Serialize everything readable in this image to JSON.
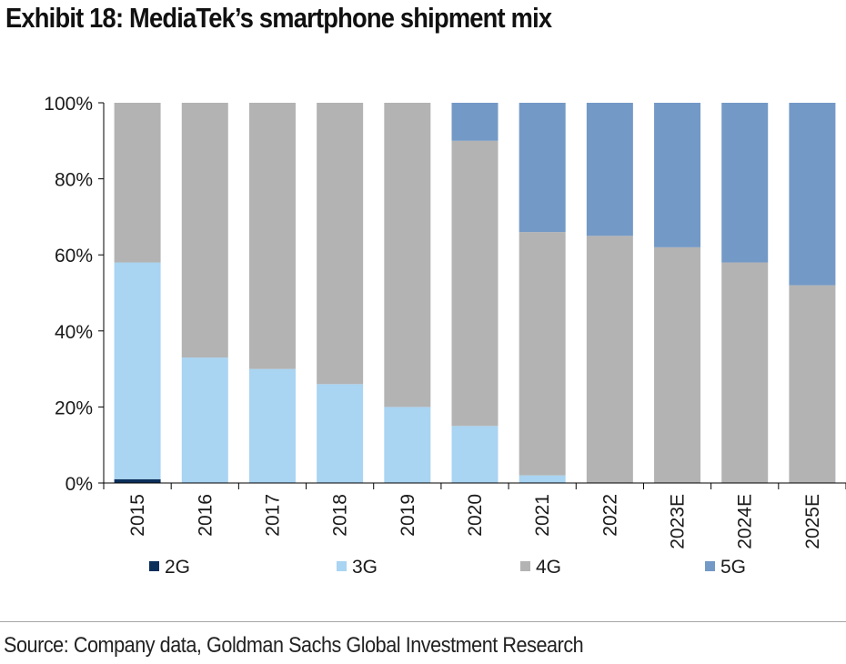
{
  "header": {
    "title": "Exhibit 18: MediaTek’s smartphone shipment mix"
  },
  "source": {
    "text": "Source: Company data, Goldman Sachs Global Investment Research"
  },
  "chart_data": {
    "type": "bar",
    "stacked": true,
    "percent": true,
    "title": "",
    "xlabel": "",
    "ylabel": "",
    "ylim": [
      0,
      100
    ],
    "yticks": [
      "0%",
      "20%",
      "40%",
      "60%",
      "80%",
      "100%"
    ],
    "grid": false,
    "legend_position": "bottom",
    "categories": [
      "2015",
      "2016",
      "2017",
      "2018",
      "2019",
      "2020",
      "2021",
      "2022",
      "2023E",
      "2024E",
      "2025E"
    ],
    "series": [
      {
        "name": "2G",
        "color": "#0b2f5b",
        "values": [
          1,
          0,
          0,
          0,
          0,
          0,
          0,
          0,
          0,
          0,
          0
        ]
      },
      {
        "name": "3G",
        "color": "#a9d4f2",
        "values": [
          57,
          33,
          30,
          26,
          20,
          15,
          2,
          0,
          0,
          0,
          0
        ]
      },
      {
        "name": "4G",
        "color": "#b3b3b3",
        "values": [
          42,
          67,
          70,
          74,
          80,
          75,
          64,
          65,
          62,
          58,
          52
        ]
      },
      {
        "name": "5G",
        "color": "#7399c6",
        "values": [
          0,
          0,
          0,
          0,
          0,
          10,
          34,
          35,
          38,
          42,
          48
        ]
      }
    ]
  }
}
